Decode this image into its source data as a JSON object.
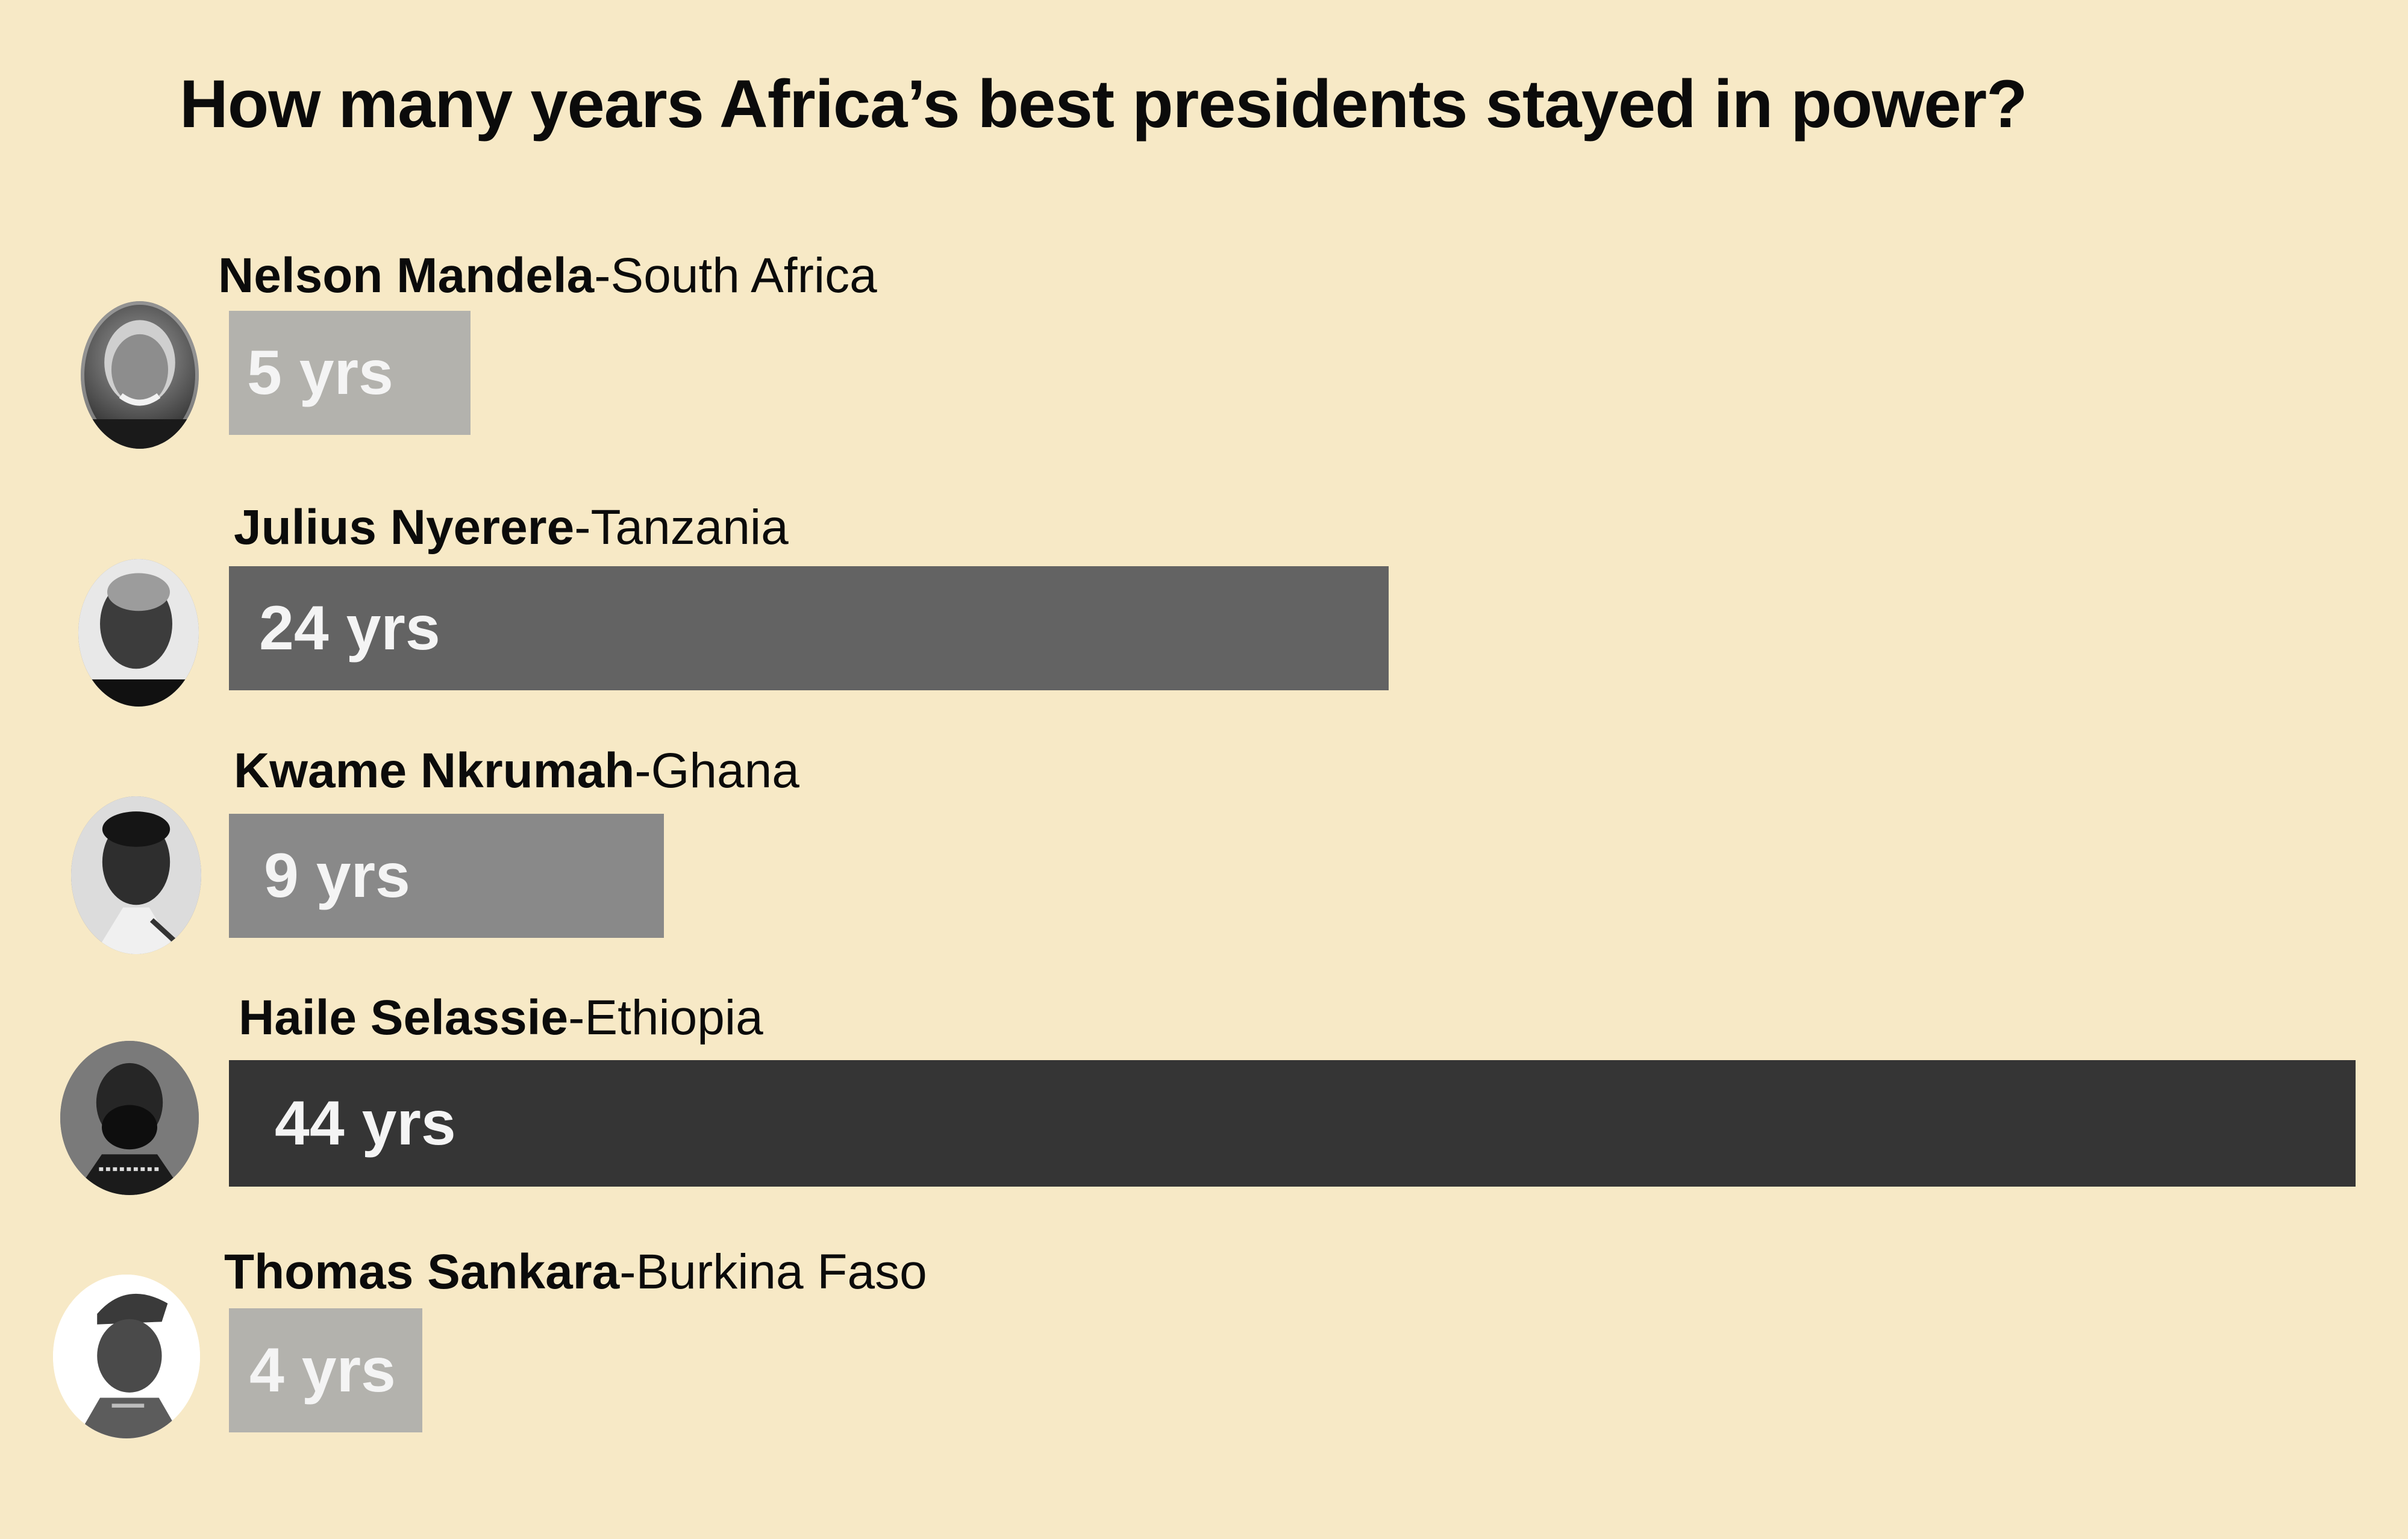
{
  "chart_data": {
    "type": "bar",
    "orientation": "horizontal",
    "title": "How many years Africa’s best presidents stayed in power?",
    "unit": "yrs",
    "xlim": [
      0,
      44
    ],
    "categories": [
      "Nelson Mandela-South Africa",
      "Julius Nyerere-Tanzania",
      "Kwame Nkrumah-Ghana",
      "Haile Selassie-Ethiopia",
      "Thomas Sankara-Burkina Faso"
    ],
    "rows": [
      {
        "name": "Nelson Mandela",
        "country": "-South Africa",
        "value": 5,
        "value_label": "5 yrs",
        "bar_color": "#b3b2ad",
        "portrait_icon": "portrait-photo"
      },
      {
        "name": "Julius Nyerere",
        "country": "-Tanzania",
        "value": 24,
        "value_label": "24 yrs",
        "bar_color": "#636363",
        "portrait_icon": "portrait-photo"
      },
      {
        "name": "Kwame Nkrumah",
        "country": "-Ghana",
        "value": 9,
        "value_label": "9 yrs",
        "bar_color": "#898989",
        "portrait_icon": "portrait-photo"
      },
      {
        "name": "Haile Selassie",
        "country": "-Ethiopia",
        "value": 44,
        "value_label": "44 yrs",
        "bar_color": "#353535",
        "portrait_icon": "portrait-photo"
      },
      {
        "name": "Thomas Sankara",
        "country": "-Burkina Faso",
        "value": 4,
        "value_label": "4 yrs",
        "bar_color": "#b3b2ad",
        "portrait_icon": "portrait-photo"
      }
    ]
  },
  "colors": {
    "background": "#f7e9c6",
    "text": "#0b0b0b",
    "bar_label_light": "#ffffff",
    "bar_label_on_light": "#f4f4f4"
  }
}
